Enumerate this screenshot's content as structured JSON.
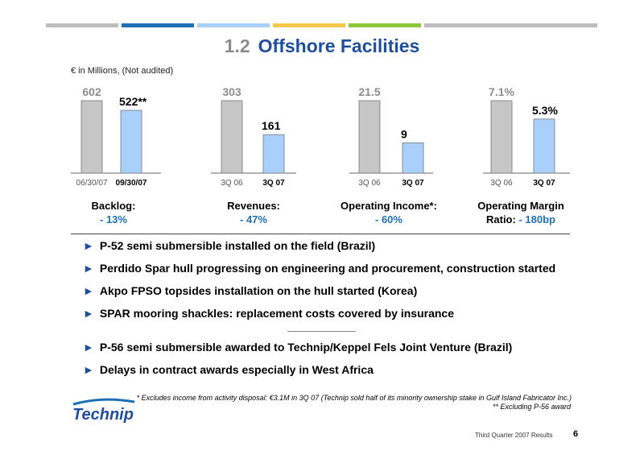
{
  "colors": {
    "title_blue": "#1f4e9c",
    "grey_bar": "#c6c6c6",
    "blue_bar": "#a9d0fb",
    "accent_blue": "#1f6fb5",
    "topbar": [
      "#bdbdbd",
      "#1f6fb5",
      "#a9d0fb",
      "#f0c94a",
      "#8dc63f",
      "#bdbdbd"
    ]
  },
  "header": {
    "number": "1.2",
    "title": "Offshore Facilities",
    "units": "€ in Millions, (Not audited)"
  },
  "chart_data": [
    {
      "type": "bar",
      "categories": [
        "06/30/07",
        "09/30/07"
      ],
      "values": [
        602,
        522
      ],
      "value_labels": [
        "602",
        "522**"
      ],
      "caption": "Backlog:",
      "change": "- 13%"
    },
    {
      "type": "bar",
      "categories": [
        "3Q 06",
        "3Q 07"
      ],
      "values": [
        303,
        161
      ],
      "value_labels": [
        "303",
        "161"
      ],
      "caption": "Revenues:",
      "change": "- 47%"
    },
    {
      "type": "bar",
      "categories": [
        "3Q 06",
        "3Q 07"
      ],
      "values": [
        21.5,
        9
      ],
      "value_labels": [
        "21.5",
        "9"
      ],
      "caption": "Operating Income*:",
      "change": "- 60%"
    },
    {
      "type": "bar",
      "categories": [
        "3Q 06",
        "3Q 07"
      ],
      "values": [
        7.1,
        5.3
      ],
      "value_labels": [
        "7.1%",
        "5.3%"
      ],
      "caption_line1": "Operating Margin",
      "caption_line2": "Ratio:",
      "change": "- 180bp"
    }
  ],
  "bullets": [
    "P-52 semi submersible installed on the field (Brazil)",
    "Perdido Spar hull progressing on engineering and procurement, construction started",
    "Akpo FPSO topsides installation on the hull started (Korea)",
    "SPAR mooring shackles: replacement costs covered by insurance",
    "P-56 semi submersible awarded to Technip/Keppel Fels Joint Venture (Brazil)",
    "Delays in contract awards especially in West Africa"
  ],
  "footnotes": {
    "note1": "* Excludes income from activity disposal: €3.1M in 3Q 07 (Technip sold half of its minority ownership stake in Gulf Island Fabricator Inc.)",
    "note2": "** Excluding P-56 award"
  },
  "logo": {
    "text": "Technip"
  },
  "footer": {
    "text": "Third Quarter 2007 Results",
    "page": "6"
  }
}
